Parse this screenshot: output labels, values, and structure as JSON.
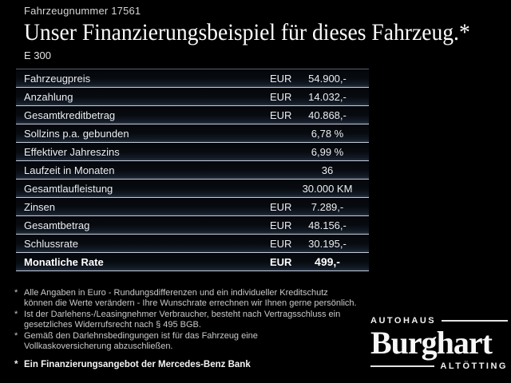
{
  "header": {
    "vehicle_number": "Fahrzeugnummer 17561",
    "title": "Unser Finanzierungsbeispiel für dieses Fahrzeug.*",
    "model": "E 300"
  },
  "financing_table": {
    "rows": [
      {
        "label": "Fahrzeugpreis",
        "currency": "EUR",
        "value": "54.900,-"
      },
      {
        "label": "Anzahlung",
        "currency": "EUR",
        "value": "14.032,-"
      },
      {
        "label": "Gesamtkreditbetrag",
        "currency": "EUR",
        "value": "40.868,-"
      },
      {
        "label": "Sollzins p.a. gebunden",
        "currency": "",
        "value": "6,78 %"
      },
      {
        "label": "Effektiver Jahreszins",
        "currency": "",
        "value": "6,99 %"
      },
      {
        "label": "Laufzeit in Monaten",
        "currency": "",
        "value": "36"
      },
      {
        "label": "Gesamtlaufleistung",
        "currency": "",
        "value": "30.000 KM"
      },
      {
        "label": "Zinsen",
        "currency": "EUR",
        "value": "7.289,-"
      },
      {
        "label": "Gesamtbetrag",
        "currency": "EUR",
        "value": "48.156,-"
      },
      {
        "label": "Schlussrate",
        "currency": "EUR",
        "value": "30.195,-"
      },
      {
        "label": "Monatliche Rate",
        "currency": "EUR",
        "value": "499,-",
        "emphasis": true
      }
    ]
  },
  "footnotes": {
    "items": [
      {
        "marker": "*",
        "text": "Alle Angaben in Euro - Rundungsdifferenzen und ein individueller Kreditschutz\nkönnen die Werte verändern - Ihre Wunschrate errechnen wir Ihnen gerne persönlich."
      },
      {
        "marker": "*",
        "text": "Ist der Darlehens-/Leasingnehmer Verbraucher, besteht nach Vertragsschluss ein\ngesetzliches Widerrufsrecht nach § 495 BGB."
      },
      {
        "marker": "*",
        "text": "Gemäß den Darlehnsbedingungen ist für das Fahrzeug eine\nVollkaskoversicherung abzuschließen."
      }
    ],
    "bank_note": {
      "marker": "*",
      "text": "Ein Finanzierungsangebot der Mercedes-Benz Bank"
    }
  },
  "dealer_logo": {
    "top_label": "Autohaus",
    "name": "Burghart",
    "bottom_label": "Altötting"
  },
  "colors": {
    "background": "#000000",
    "row_separator": "#c3ccd7",
    "table_top_border": "#58616d",
    "row_gradient_bottom": "#27313f",
    "text_primary": "#f2f2f2",
    "text_secondary": "#c7c9cb"
  }
}
